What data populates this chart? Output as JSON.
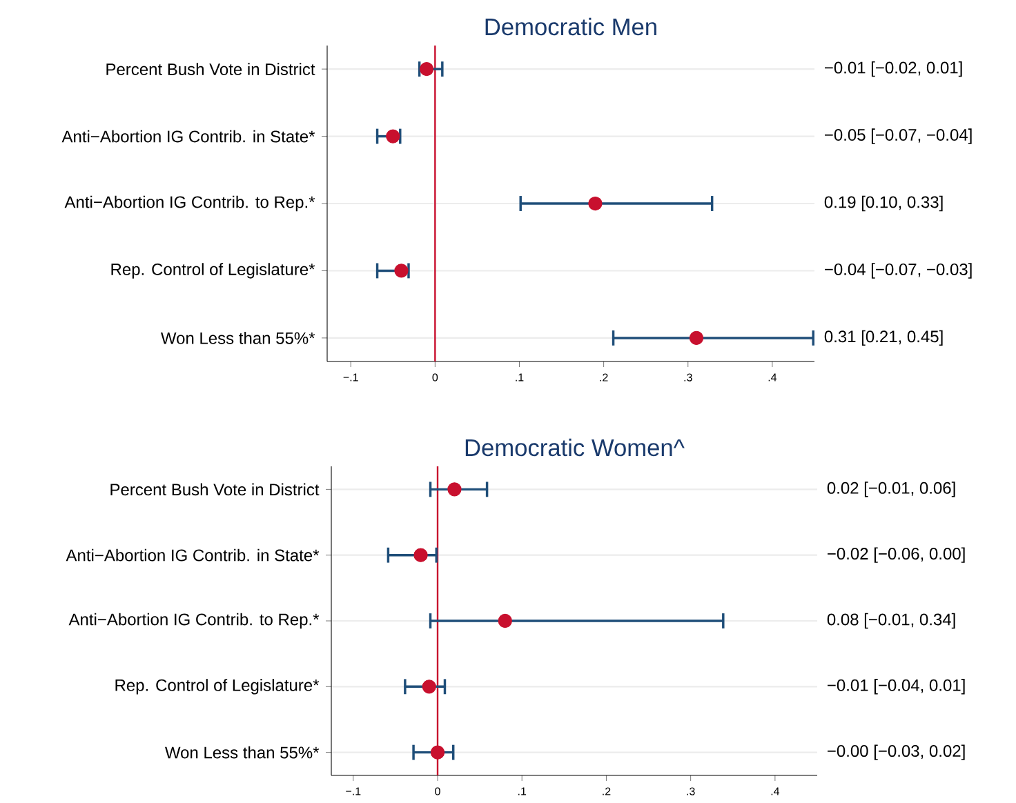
{
  "chart_data": [
    {
      "type": "scatter",
      "orientation": "horizontal",
      "title": "Democratic Men",
      "categories": [
        "Percent Bush Vote in District",
        "Anti−Abortion IG Contrib. in State*",
        "Anti−Abortion IG Contrib. to Rep.*",
        "Rep. Control of Legislature*",
        "Won Less than 55%*"
      ],
      "values": [
        -0.01,
        -0.05,
        0.19,
        -0.04,
        0.31
      ],
      "errors": [
        [
          -0.02,
          0.01
        ],
        [
          -0.07,
          -0.04
        ],
        [
          0.1,
          0.33
        ],
        [
          -0.07,
          -0.03
        ],
        [
          0.21,
          0.45
        ]
      ],
      "annotations": [
        "−0.01 [−0.02, 0.01]",
        "−0.05 [−0.07, −0.04]",
        "0.19 [0.10, 0.33]",
        "−0.04 [−0.07, −0.03]",
        "0.31 [0.21, 0.45]"
      ],
      "color": "#c8102e",
      "marker": "circle",
      "grid": "y",
      "ref_lines": [
        {
          "axis": "x",
          "value": 0,
          "color": "#c8102e"
        }
      ],
      "xlim": [
        -0.128,
        0.45
      ],
      "xticks": [
        {
          "value": -0.1,
          "label": "−.1"
        },
        0,
        {
          "value": 0.1,
          "label": ".1"
        },
        {
          "value": 0.2,
          "label": ".2"
        },
        {
          "value": 0.3,
          "label": ".3"
        },
        {
          "value": 0.4,
          "label": ".4"
        }
      ]
    },
    {
      "type": "scatter",
      "orientation": "horizontal",
      "title": "Democratic Women^",
      "categories": [
        "Percent Bush Vote in District",
        "Anti−Abortion IG Contrib. in State*",
        "Anti−Abortion IG Contrib. to Rep.*",
        "Rep. Control of Legislature*",
        "Won Less than 55%*"
      ],
      "values": [
        0.02,
        -0.02,
        0.08,
        -0.01,
        0
      ],
      "errors": [
        [
          -0.01,
          0.06
        ],
        [
          -0.06,
          0.0
        ],
        [
          -0.01,
          0.34
        ],
        [
          -0.04,
          0.01
        ],
        [
          -0.03,
          0.02
        ]
      ],
      "annotations": [
        "0.02 [−0.01, 0.06]",
        "−0.02 [−0.06, 0.00]",
        "0.08 [−0.01, 0.34]",
        "−0.01 [−0.04, 0.01]",
        "−0.00 [−0.03, 0.02]"
      ],
      "color": "#c8102e",
      "marker": "circle",
      "grid": "y",
      "ref_lines": [
        {
          "axis": "x",
          "value": 0,
          "color": "#c8102e"
        }
      ],
      "xlim": [
        -0.126,
        0.45
      ],
      "xticks": [
        {
          "value": -0.1,
          "label": "−.1"
        },
        0,
        {
          "value": 0.1,
          "label": ".1"
        },
        {
          "value": 0.2,
          "label": ".2"
        },
        {
          "value": 0.3,
          "label": ".3"
        },
        {
          "value": 0.4,
          "label": ".4"
        }
      ]
    }
  ]
}
